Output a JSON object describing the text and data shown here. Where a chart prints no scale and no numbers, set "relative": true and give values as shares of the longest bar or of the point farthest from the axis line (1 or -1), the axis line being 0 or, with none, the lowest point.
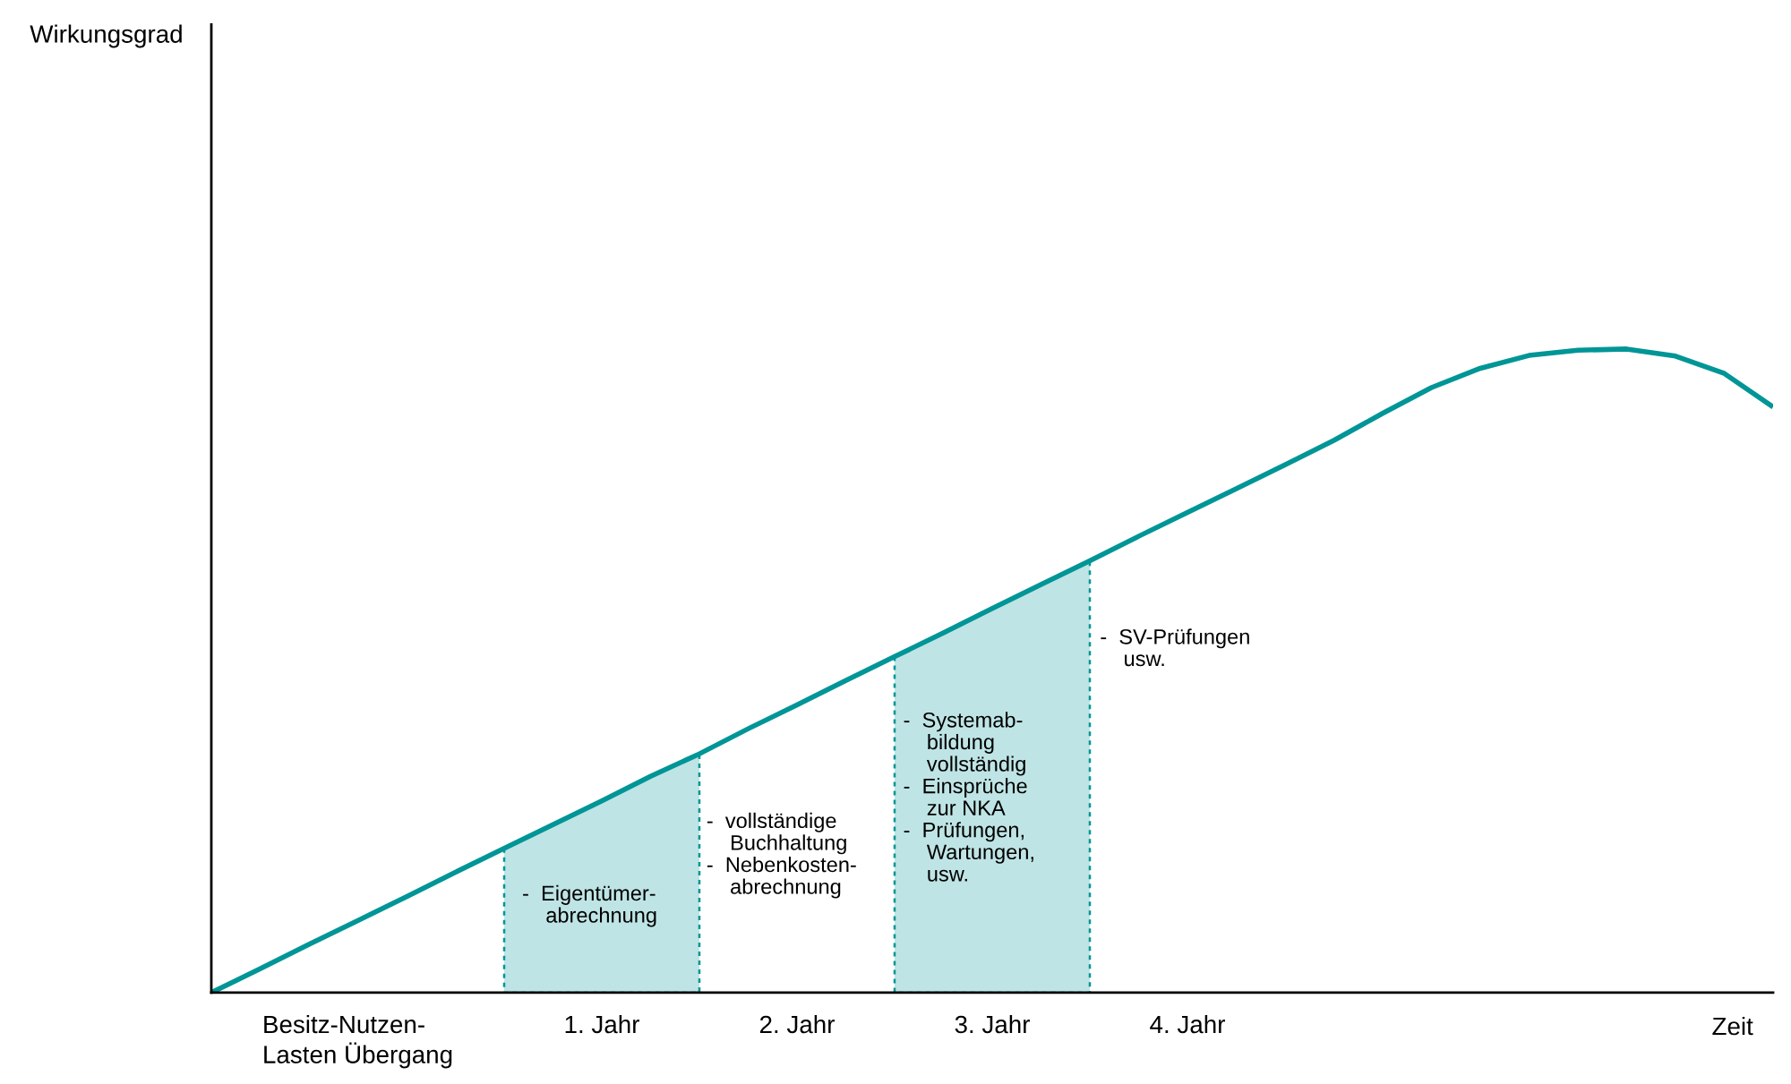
{
  "chart_data": {
    "type": "line",
    "relative": true,
    "xlabel": "Zeit",
    "categories": [
      null,
      null,
      null,
      "Besitz-Nutzen-\nLasten Übergang",
      null,
      null,
      null,
      null,
      "1. Jahr",
      null,
      null,
      null,
      "2. Jahr",
      null,
      null,
      null,
      "3. Jahr",
      null,
      null,
      null,
      "4. Jahr",
      null,
      null,
      null,
      null,
      null,
      null,
      null,
      null,
      null,
      null,
      null,
      null
    ],
    "series": [
      {
        "type": "area",
        "color": "#bfe4e5",
        "values": [
          null,
          null,
          null,
          null,
          null,
          null,
          0.224,
          0.261,
          0.298,
          0.336,
          0.371,
          null,
          null,
          null,
          null,
          null,
          null,
          null,
          null,
          null,
          null,
          null,
          null,
          null,
          null,
          null,
          null,
          null,
          null,
          null,
          null,
          null,
          null
        ]
      },
      {
        "type": "area",
        "color": "#bfe4e5",
        "values": [
          null,
          null,
          null,
          null,
          null,
          null,
          null,
          null,
          null,
          null,
          null,
          null,
          null,
          null,
          0.522,
          0.559,
          0.597,
          0.634,
          0.671,
          null,
          null,
          null,
          null,
          null,
          null,
          null,
          null,
          null,
          null,
          null,
          null,
          null,
          null
        ]
      },
      {
        "color": "#009596",
        "values": [
          0,
          0.037,
          0.075,
          0.112,
          0.149,
          0.187,
          0.224,
          0.261,
          0.298,
          0.336,
          0.371,
          0.41,
          0.447,
          0.485,
          0.522,
          0.559,
          0.597,
          0.634,
          0.671,
          0.709,
          0.746,
          0.783,
          0.82,
          0.858,
          0.9,
          0.94,
          0.97,
          0.99,
          0.998,
          1.0,
          0.989,
          0.962,
          0.91
        ]
      }
    ],
    "annotations": [
      "Wirkungsgrad",
      "-  Eigentümer-\n    abrechnung",
      "-  vollständige\n    Buchhaltung\n-  Nebenkosten-\n    abrechnung",
      "-  Systemab-\n    bildung\n    vollständig\n-  Einsprüche\n    zur NKA\n-  Prüfungen,\n    Wartungen,\n    usw.",
      "-  SV-Prüfungen\n    usw."
    ],
    "marker": "none",
    "line_style": "solid"
  }
}
